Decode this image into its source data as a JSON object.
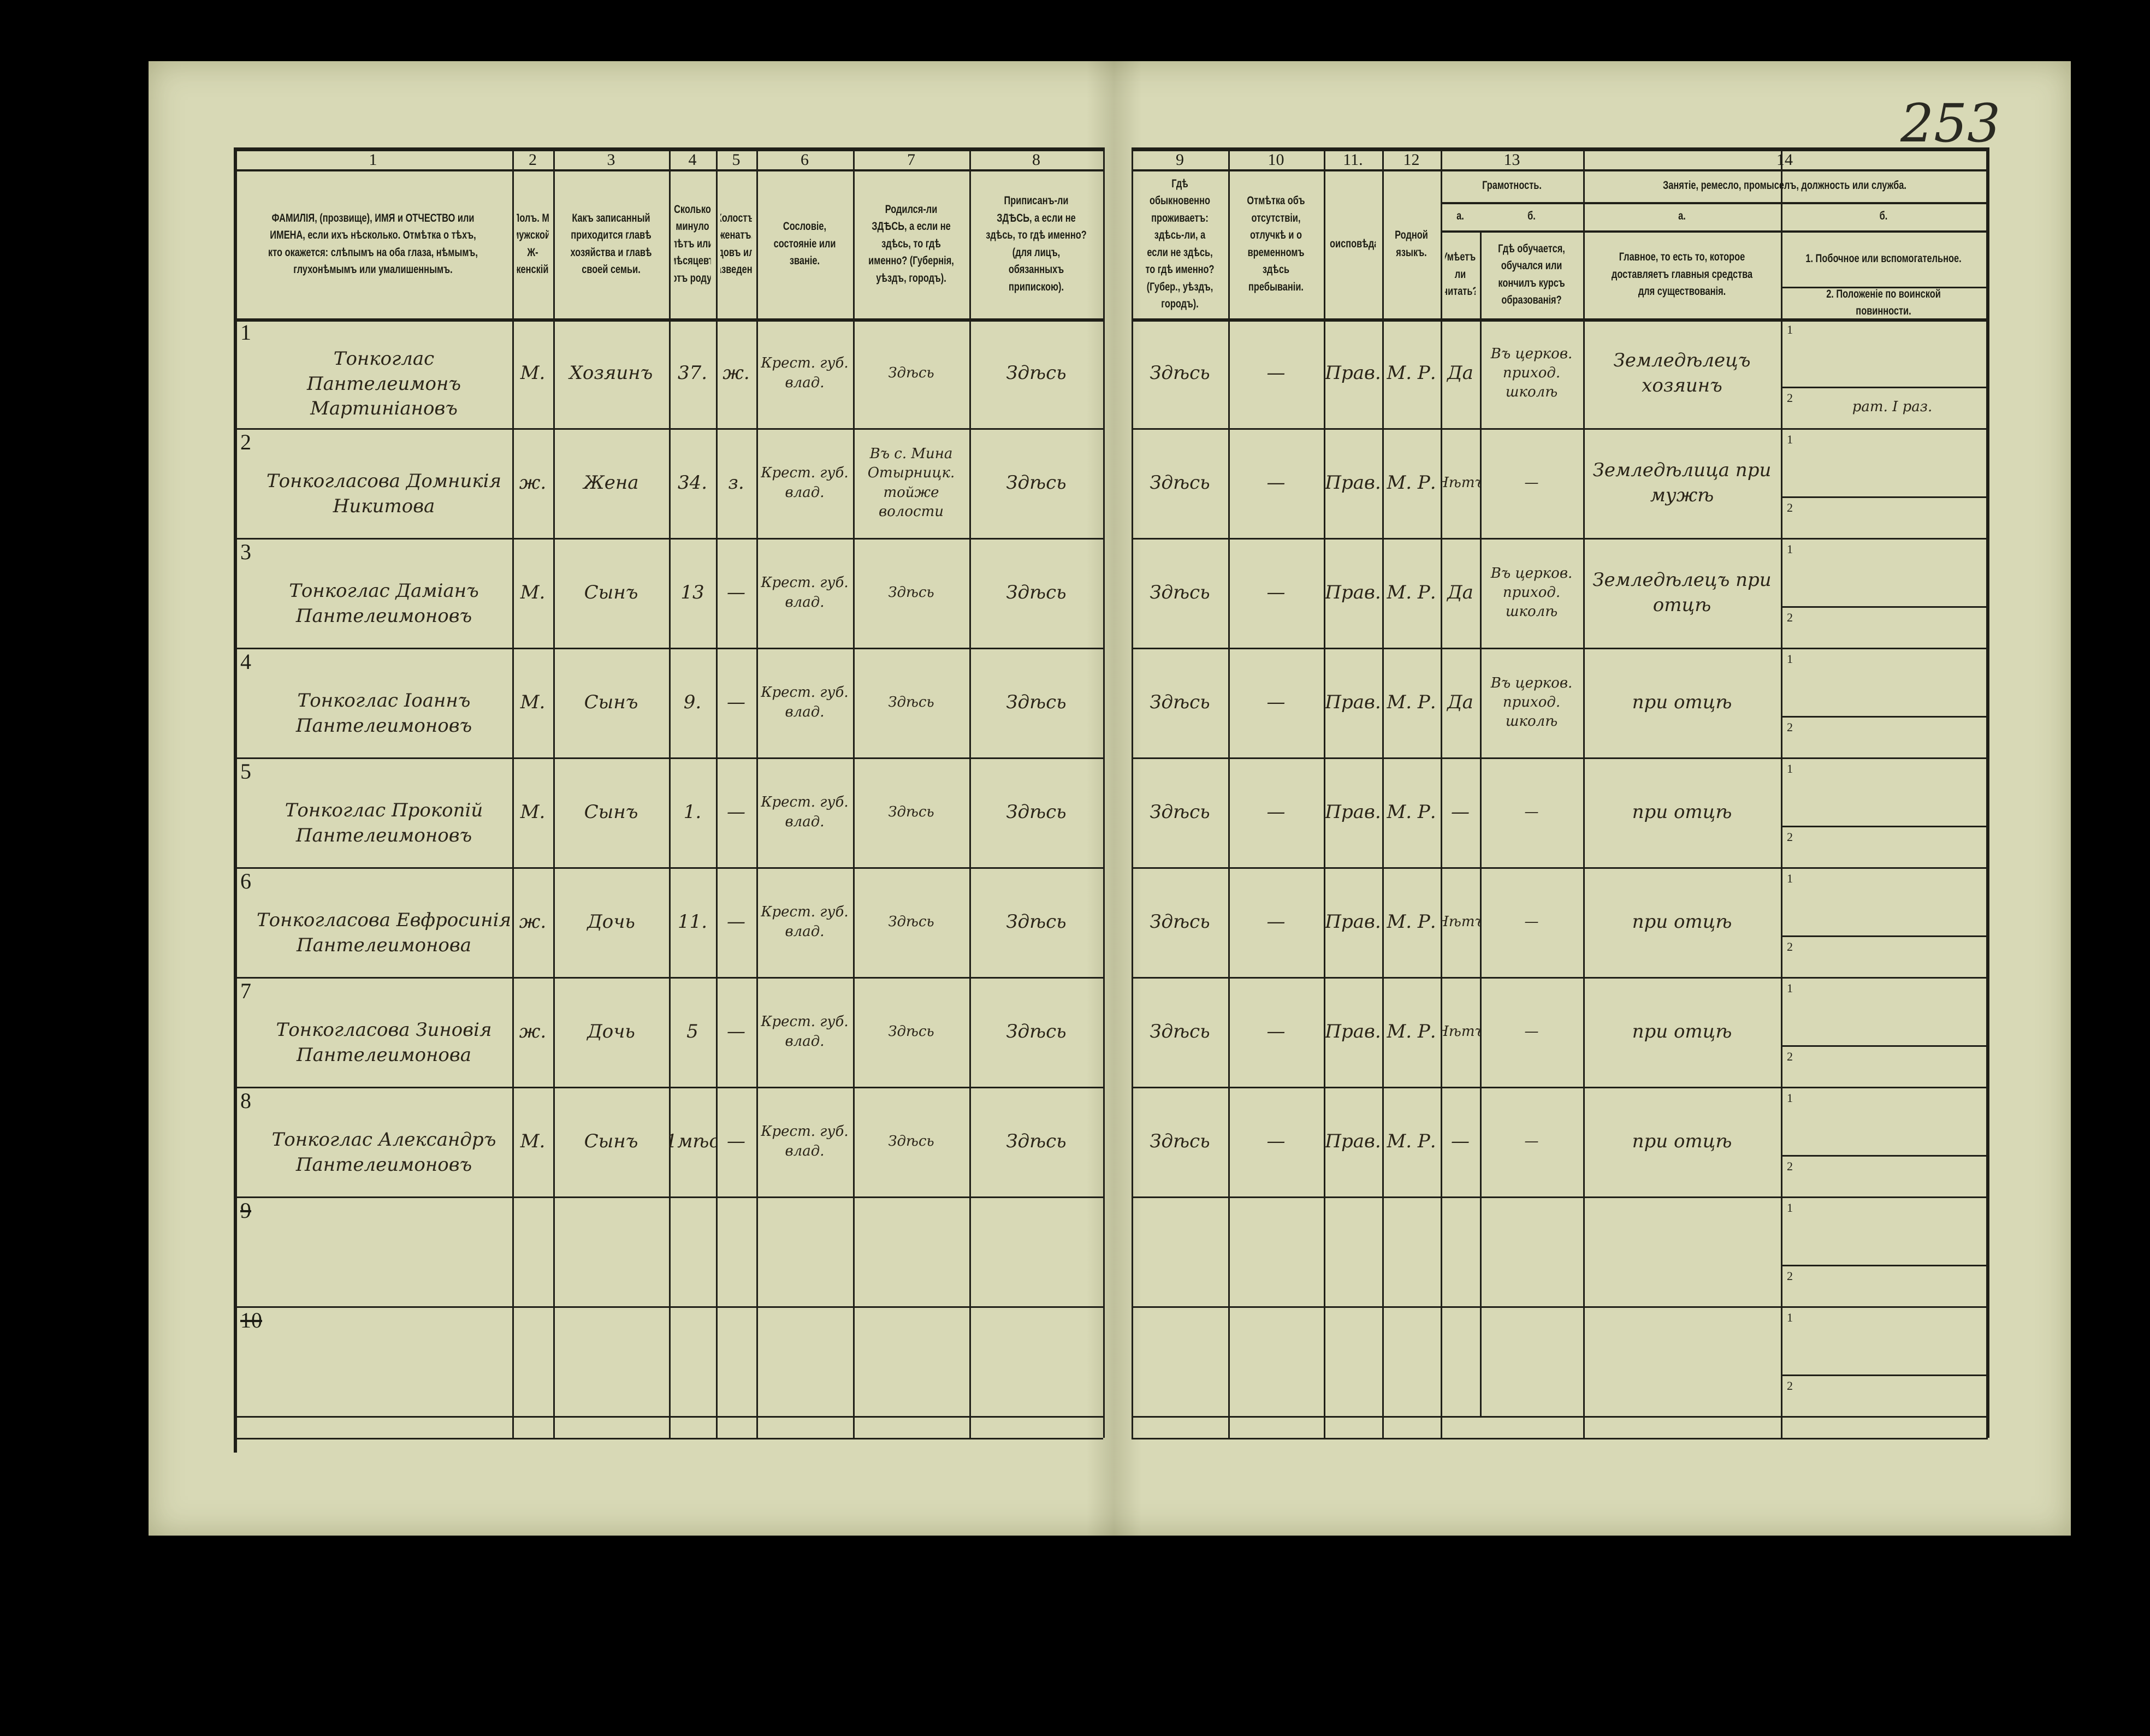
{
  "page_number": "253",
  "header": {
    "column_numbers": [
      "1",
      "2",
      "3",
      "4",
      "5",
      "6",
      "7",
      "8",
      "9",
      "10",
      "11.",
      "12",
      "13",
      "14"
    ],
    "col1": "ФАМИЛІЯ, (прозвище), ИМЯ и ОТЧЕСТВО или ИМЕНА, если ихъ нѣсколько. Отмѣтка о тѣхъ, кто окажется: слѣпымъ на оба глаза, нѣмымъ, глухонѣмымъ или умалишеннымъ.",
    "col2": "Полъ. М-мужской. Ж-женскій.",
    "col3": "Какъ записанный приходится главѣ хозяйства и главѣ своей семьи.",
    "col4": "Сколько минуло лѣтъ или мѣсяцевъ отъ роду.",
    "col5": "Холостъ, женатъ, вдовъ или разведенъ.",
    "col6": "Сословіе, состояніе или званіе.",
    "col7": "Родился-ли ЗДѢСЬ, а если не здѣсь, то гдѣ именно? (Губернія, уѣздъ, городъ).",
    "col8": "Приписанъ-ли ЗДѢСЬ, а если не здѣсь, то гдѣ именно? (для лицъ, обязанныхъ припискою).",
    "col9": "Гдѣ обыкновенно проживаетъ: здѣсь-ли, а если не здѣсь, то гдѣ именно? (Губер., уѣздъ, городъ).",
    "col10": "Отмѣтка объ отсутствіи, отлучкѣ и о временномъ здѣсь пребываніи.",
    "col11": "Вѣроисповѣданіе.",
    "col12": "Родной языкъ.",
    "col13": "Грамотность.",
    "col13a_letter": "а.",
    "col13b_letter": "б.",
    "col13a": "Умѣетъ-ли читать?",
    "col13b": "Гдѣ обучается, обучался или кончилъ курсъ образованія?",
    "col14": "Занятіе, ремесло, промыселъ, должность или служба.",
    "col14a_letter": "а.",
    "col14b_letter": "б.",
    "col14a": "Главное, то есть то, которое доставляетъ главныя средства для существованія.",
    "col14b1": "1. Побочное или вспомогательное.",
    "col14b2": "2. Положеніе по воинской повинности."
  },
  "rows": [
    {
      "n": "1",
      "name": "Тонкоглас Пантелеимонъ Мартиніановъ",
      "sex": "М.",
      "relation": "Хозяинъ",
      "age": "37.",
      "marital": "ж.",
      "estate": "Крест. губ. влад.",
      "born": "Здѣсь",
      "registered": "Здѣсь",
      "resides": "Здѣсь",
      "absence": "—",
      "religion": "Прав.",
      "language": "М. Р.",
      "literate": "Да",
      "school": "Въ церков. приход. школѣ",
      "occupation": "Земледѣлецъ хозяинъ",
      "sub1_label": "1",
      "sub1": "",
      "sub2_label": "2",
      "sub2": "рат. I раз."
    },
    {
      "n": "2",
      "name": "Тонкогласова Домникія Никитова",
      "sex": "ж.",
      "relation": "Жена",
      "age": "34.",
      "marital": "з.",
      "estate": "Крест. губ. влад.",
      "born": "Въ с. Мина Отырницк. тойже волости",
      "registered": "Здѣсь",
      "resides": "Здѣсь",
      "absence": "—",
      "religion": "Прав.",
      "language": "М. Р.",
      "literate": "Нѣтъ",
      "school": "—",
      "occupation": "Земледѣлица при мужѣ",
      "sub1_label": "1",
      "sub1": "",
      "sub2_label": "2",
      "sub2": ""
    },
    {
      "n": "3",
      "name": "Тонкоглас Даміанъ Пантелеимоновъ",
      "sex": "М.",
      "relation": "Сынъ",
      "age": "13",
      "marital": "—",
      "estate": "Крест. губ. влад.",
      "born": "Здѣсь",
      "registered": "Здѣсь",
      "resides": "Здѣсь",
      "absence": "—",
      "religion": "Прав.",
      "language": "М. Р.",
      "literate": "Да",
      "school": "Въ церков. приход. школѣ",
      "occupation": "Земледѣлецъ при отцѣ",
      "sub1_label": "1",
      "sub1": "",
      "sub2_label": "2",
      "sub2": ""
    },
    {
      "n": "4",
      "name": "Тонкоглас Іоаннъ Пантелеимоновъ",
      "sex": "М.",
      "relation": "Сынъ",
      "age": "9.",
      "marital": "—",
      "estate": "Крест. губ. влад.",
      "born": "Здѣсь",
      "registered": "Здѣсь",
      "resides": "Здѣсь",
      "absence": "—",
      "religion": "Прав.",
      "language": "М. Р.",
      "literate": "Да",
      "school": "Въ церков. приход. школѣ",
      "occupation": "при отцѣ",
      "sub1_label": "1",
      "sub1": "",
      "sub2_label": "2",
      "sub2": ""
    },
    {
      "n": "5",
      "name": "Тонкоглас Прокопій Пантелеимоновъ",
      "sex": "М.",
      "relation": "Сынъ",
      "age": "1.",
      "marital": "—",
      "estate": "Крест. губ. влад.",
      "born": "Здѣсь",
      "registered": "Здѣсь",
      "resides": "Здѣсь",
      "absence": "—",
      "religion": "Прав.",
      "language": "М. Р.",
      "literate": "—",
      "school": "—",
      "occupation": "при отцѣ",
      "sub1_label": "1",
      "sub1": "",
      "sub2_label": "2",
      "sub2": ""
    },
    {
      "n": "6",
      "name": "Тонкогласова Евфросинія Пантелеимонова",
      "sex": "ж.",
      "relation": "Дочь",
      "age": "11.",
      "marital": "—",
      "estate": "Крест. губ. влад.",
      "born": "Здѣсь",
      "registered": "Здѣсь",
      "resides": "Здѣсь",
      "absence": "—",
      "religion": "Прав.",
      "language": "М. Р.",
      "literate": "Нѣтъ",
      "school": "—",
      "occupation": "при отцѣ",
      "sub1_label": "1",
      "sub1": "",
      "sub2_label": "2",
      "sub2": ""
    },
    {
      "n": "7",
      "name": "Тонкогласова Зиновія Пантелеимонова",
      "sex": "ж.",
      "relation": "Дочь",
      "age": "5",
      "marital": "—",
      "estate": "Крест. губ. влад.",
      "born": "Здѣсь",
      "registered": "Здѣсь",
      "resides": "Здѣсь",
      "absence": "—",
      "religion": "Прав.",
      "language": "М. Р.",
      "literate": "Нѣтъ",
      "school": "—",
      "occupation": "при отцѣ",
      "sub1_label": "1",
      "sub1": "",
      "sub2_label": "2",
      "sub2": ""
    },
    {
      "n": "8",
      "name": "Тонкоглас Александръ Пантелеимоновъ",
      "sex": "М.",
      "relation": "Сынъ",
      "age": "1мѣс",
      "marital": "—",
      "estate": "Крест. губ. влад.",
      "born": "Здѣсь",
      "registered": "Здѣсь",
      "resides": "Здѣсь",
      "absence": "—",
      "religion": "Прав.",
      "language": "М. Р.",
      "literate": "—",
      "school": "—",
      "occupation": "при отцѣ",
      "sub1_label": "1",
      "sub1": "",
      "sub2_label": "2",
      "sub2": ""
    },
    {
      "n": "9",
      "name": "",
      "sex": "",
      "relation": "",
      "age": "",
      "marital": "",
      "estate": "",
      "born": "",
      "registered": "",
      "resides": "",
      "absence": "",
      "religion": "",
      "language": "",
      "literate": "",
      "school": "",
      "occupation": "",
      "sub1_label": "1",
      "sub1": "",
      "sub2_label": "2",
      "sub2": ""
    },
    {
      "n": "10",
      "name": "",
      "sex": "",
      "relation": "",
      "age": "",
      "marital": "",
      "estate": "",
      "born": "",
      "registered": "",
      "resides": "",
      "absence": "",
      "religion": "",
      "language": "",
      "literate": "",
      "school": "",
      "occupation": "",
      "sub1_label": "1",
      "sub1": "",
      "sub2_label": "2",
      "sub2": ""
    }
  ]
}
